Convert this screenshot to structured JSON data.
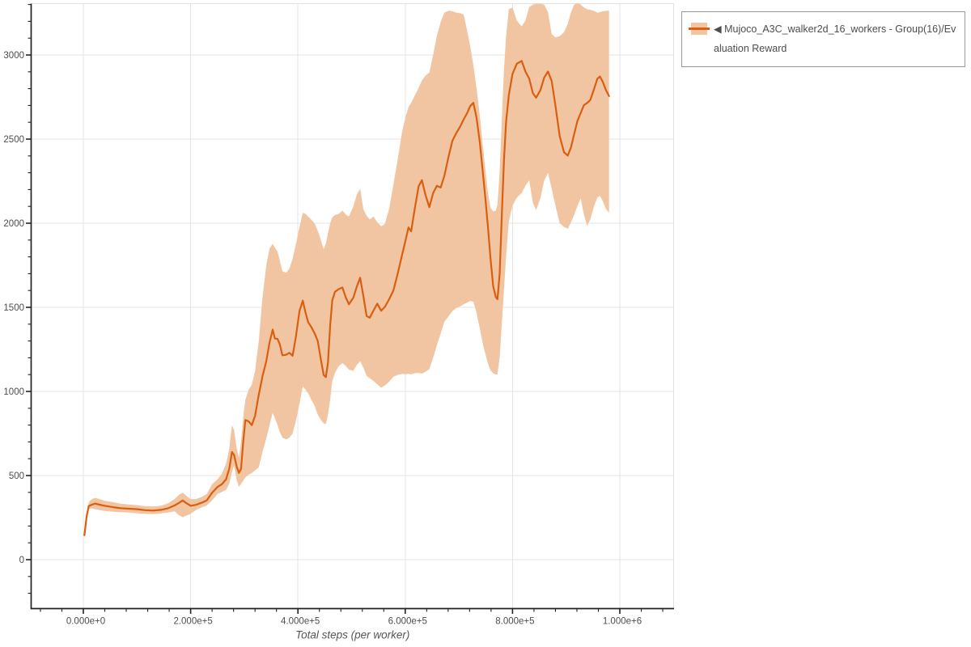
{
  "colors": {
    "line": "#d95f0e",
    "band": "#f2c5a2",
    "grid": "#e4e4e4",
    "frame": "#e0e0e0",
    "axis": "#222222",
    "tick_label": "#4d4d4d",
    "axis_title": "#555555",
    "legend_border": "#999999",
    "legend_text": "#4d4d4d",
    "background": "#ffffff"
  },
  "legend": {
    "label": "◀ Mujoco_A3C_walker2d_16_workers - Group(16)/Evaluation Reward"
  },
  "chart_data": {
    "type": "line",
    "title": "",
    "xlabel": "Total steps (per worker)",
    "ylabel": "",
    "grid": true,
    "legend_position": "outside-top-right",
    "xlim": [
      -98000,
      1101000
    ],
    "ylim": [
      -290,
      3305
    ],
    "x_ticks": {
      "values": [
        0,
        200000,
        400000,
        600000,
        800000,
        1000000
      ],
      "labels": [
        "0.000e+0",
        "2.000e+5",
        "4.000e+5",
        "6.000e+5",
        "8.000e+5",
        "1.000e+6"
      ],
      "minor_step": 40000,
      "minor_range": [
        -80000,
        1080000
      ]
    },
    "y_ticks": {
      "values": [
        0,
        500,
        1000,
        1500,
        2000,
        2500,
        3000
      ],
      "labels": [
        "0",
        "500",
        "1000",
        "1500",
        "2000",
        "2500",
        "3000"
      ],
      "minor_step": 100,
      "minor_range": [
        -200,
        3300
      ]
    },
    "series": [
      {
        "name": "◀ Mujoco_A3C_walker2d_16_workers - Group(16)/Evaluation Reward",
        "style": "mean-line-with-confidence-band",
        "steps": [
          2000,
          6000,
          10000,
          16000,
          22000,
          30000,
          40000,
          55000,
          70000,
          85000,
          100000,
          115000,
          130000,
          145000,
          158000,
          170000,
          178000,
          185000,
          192000,
          200000,
          210000,
          220000,
          230000,
          240000,
          250000,
          258000,
          266000,
          272000,
          277000,
          281000,
          286000,
          290000,
          294000,
          298000,
          302000,
          308000,
          314000,
          320000,
          327000,
          334000,
          341000,
          347000,
          353000,
          357000,
          362000,
          366000,
          371000,
          378000,
          384000,
          390000,
          396000,
          403000,
          409000,
          414000,
          419000,
          425000,
          431000,
          437000,
          443000,
          448000,
          452000,
          456000,
          460000,
          464000,
          469000,
          476000,
          483000,
          489000,
          495000,
          503000,
          510000,
          516000,
          522000,
          528000,
          534000,
          541000,
          548000,
          555000,
          562000,
          570000,
          578000,
          586000,
          594000,
          600000,
          606000,
          611000,
          618000,
          625000,
          631000,
          638000,
          645000,
          652000,
          659000,
          666000,
          673000,
          681000,
          688000,
          695000,
          702000,
          709000,
          715000,
          721000,
          727000,
          733000,
          739000,
          744000,
          749000,
          754000,
          759000,
          764000,
          769000,
          772000,
          776000,
          780000,
          784000,
          788000,
          793000,
          800000,
          808000,
          817000,
          824000,
          831000,
          838000,
          844000,
          852000,
          859000,
          866000,
          873000,
          880000,
          888000,
          896000,
          903000,
          909000,
          915000,
          921000,
          927000,
          933000,
          939000,
          945000,
          952000,
          958000,
          963000,
          968000,
          974000,
          980000
        ],
        "mean": [
          145,
          255,
          318,
          327,
          333,
          327,
          320,
          312,
          306,
          303,
          300,
          294,
          292,
          296,
          306,
          322,
          337,
          352,
          336,
          320,
          326,
          338,
          352,
          398,
          432,
          448,
          478,
          540,
          640,
          622,
          552,
          516,
          540,
          700,
          830,
          822,
          800,
          855,
          980,
          1090,
          1180,
          1290,
          1368,
          1315,
          1312,
          1282,
          1215,
          1218,
          1230,
          1212,
          1320,
          1480,
          1540,
          1470,
          1412,
          1382,
          1345,
          1300,
          1185,
          1098,
          1085,
          1170,
          1390,
          1540,
          1592,
          1608,
          1618,
          1560,
          1518,
          1556,
          1625,
          1676,
          1565,
          1448,
          1438,
          1482,
          1522,
          1480,
          1502,
          1548,
          1600,
          1700,
          1810,
          1890,
          1975,
          1952,
          2090,
          2220,
          2256,
          2165,
          2095,
          2180,
          2222,
          2212,
          2282,
          2400,
          2490,
          2535,
          2572,
          2618,
          2652,
          2695,
          2716,
          2625,
          2480,
          2322,
          2160,
          1985,
          1790,
          1625,
          1560,
          1548,
          1700,
          2040,
          2370,
          2600,
          2760,
          2888,
          2948,
          2965,
          2902,
          2860,
          2772,
          2746,
          2792,
          2865,
          2902,
          2845,
          2700,
          2518,
          2422,
          2402,
          2452,
          2530,
          2608,
          2655,
          2702,
          2715,
          2732,
          2798,
          2858,
          2872,
          2842,
          2792,
          2756
        ],
        "lower": [
          138,
          240,
          300,
          305,
          300,
          295,
          290,
          285,
          282,
          280,
          276,
          272,
          270,
          275,
          280,
          288,
          265,
          252,
          262,
          272,
          295,
          310,
          322,
          352,
          390,
          402,
          415,
          450,
          520,
          560,
          470,
          433,
          450,
          470,
          490,
          505,
          515,
          530,
          550,
          640,
          720,
          800,
          872,
          840,
          800,
          760,
          725,
          716,
          725,
          750,
          820,
          930,
          1030,
          1010,
          990,
          950,
          915,
          862,
          830,
          810,
          806,
          860,
          950,
          1060,
          1110,
          1150,
          1168,
          1152,
          1130,
          1122,
          1158,
          1180,
          1140,
          1092,
          1078,
          1062,
          1042,
          1022,
          1035,
          1058,
          1088,
          1098,
          1105,
          1102,
          1105,
          1102,
          1108,
          1110,
          1106,
          1118,
          1132,
          1200,
          1275,
          1345,
          1415,
          1448,
          1478,
          1495,
          1505,
          1518,
          1528,
          1538,
          1532,
          1468,
          1372,
          1292,
          1228,
          1168,
          1125,
          1108,
          1100,
          1102,
          1200,
          1400,
          1600,
          1800,
          2010,
          2105,
          2152,
          2180,
          2222,
          2255,
          2120,
          2078,
          2150,
          2252,
          2300,
          2205,
          2105,
          2000,
          1978,
          1968,
          2005,
          2052,
          2102,
          2148,
          2052,
          1985,
          2022,
          2102,
          2152,
          2162,
          2132,
          2085,
          2062
        ],
        "upper": [
          152,
          270,
          342,
          360,
          368,
          360,
          350,
          342,
          332,
          328,
          324,
          318,
          316,
          320,
          335,
          360,
          385,
          398,
          380,
          360,
          360,
          372,
          390,
          448,
          478,
          510,
          570,
          660,
          800,
          770,
          660,
          605,
          700,
          850,
          950,
          1010,
          1040,
          1120,
          1300,
          1560,
          1750,
          1850,
          1878,
          1855,
          1830,
          1780,
          1715,
          1706,
          1730,
          1790,
          1870,
          1980,
          2062,
          2056,
          2040,
          2020,
          2000,
          1955,
          1898,
          1845,
          1880,
          1940,
          2000,
          2035,
          2048,
          2056,
          2075,
          2052,
          2040,
          2098,
          2172,
          2206,
          2082,
          2044,
          2022,
          2040,
          2005,
          1982,
          1995,
          2085,
          2230,
          2380,
          2540,
          2625,
          2690,
          2715,
          2760,
          2805,
          2848,
          2878,
          2895,
          3000,
          3115,
          3195,
          3252,
          3264,
          3260,
          3252,
          3248,
          3240,
          3150,
          3055,
          2940,
          2800,
          2640,
          2480,
          2330,
          2185,
          2092,
          2070,
          2075,
          2110,
          2310,
          2610,
          2910,
          3110,
          3272,
          3282,
          3205,
          3170,
          3205,
          3285,
          3300,
          3305,
          3305,
          3300,
          3255,
          3125,
          3105,
          3112,
          3135,
          3185,
          3255,
          3300,
          3308,
          3300,
          3282,
          3272,
          3268,
          3262,
          3252,
          3255,
          3260,
          3262,
          3265
        ]
      }
    ]
  }
}
